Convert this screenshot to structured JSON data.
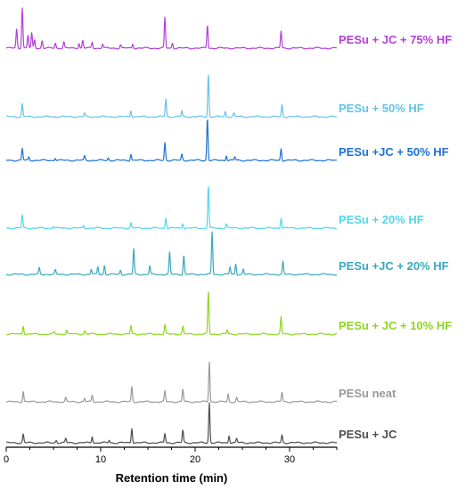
{
  "chart_data": {
    "type": "line",
    "title": "",
    "xlabel": "Retention time (min)",
    "ylabel": "",
    "xlim": [
      0,
      35
    ],
    "x_ticks": [
      0,
      10,
      20,
      30
    ],
    "grid": false,
    "legend": "inline labels at right of each trace",
    "series": [
      {
        "name": "PESu + JC + 75% HF",
        "color": "#b43fd9",
        "peaks": [
          [
            1.1,
            0.45
          ],
          [
            1.7,
            0.95
          ],
          [
            2.3,
            0.3
          ],
          [
            2.7,
            0.35
          ],
          [
            3.0,
            0.2
          ],
          [
            3.8,
            0.18
          ],
          [
            5.2,
            0.12
          ],
          [
            6.1,
            0.15
          ],
          [
            7.7,
            0.12
          ],
          [
            8.1,
            0.18
          ],
          [
            9.1,
            0.14
          ],
          [
            10.2,
            0.1
          ],
          [
            12.1,
            0.08
          ],
          [
            13.4,
            0.1
          ],
          [
            16.8,
            0.72
          ],
          [
            17.6,
            0.12
          ],
          [
            21.3,
            0.55
          ],
          [
            29.1,
            0.4
          ]
        ]
      },
      {
        "name": "PESu + 50% HF",
        "color": "#63c2ea",
        "peaks": [
          [
            1.7,
            0.3
          ],
          [
            8.3,
            0.08
          ],
          [
            13.2,
            0.15
          ],
          [
            16.9,
            0.42
          ],
          [
            18.6,
            0.14
          ],
          [
            21.4,
            1.0
          ],
          [
            23.2,
            0.12
          ],
          [
            24.1,
            0.08
          ],
          [
            29.2,
            0.28
          ]
        ]
      },
      {
        "name": "PESu +JC + 50% HF",
        "color": "#1d72d4",
        "peaks": [
          [
            1.7,
            0.28
          ],
          [
            2.4,
            0.08
          ],
          [
            5.2,
            0.06
          ],
          [
            8.3,
            0.1
          ],
          [
            10.8,
            0.06
          ],
          [
            13.2,
            0.15
          ],
          [
            16.8,
            0.42
          ],
          [
            18.6,
            0.14
          ],
          [
            21.3,
            1.0
          ],
          [
            23.3,
            0.12
          ],
          [
            24.2,
            0.08
          ],
          [
            29.1,
            0.28
          ]
        ]
      },
      {
        "name": "PESu + 20% HF",
        "color": "#52d6ec",
        "peaks": [
          [
            1.7,
            0.3
          ],
          [
            5.0,
            0.05
          ],
          [
            8.2,
            0.06
          ],
          [
            13.2,
            0.12
          ],
          [
            16.9,
            0.25
          ],
          [
            18.7,
            0.12
          ],
          [
            21.4,
            1.0
          ],
          [
            23.3,
            0.1
          ],
          [
            29.1,
            0.25
          ]
        ]
      },
      {
        "name": "PESu +JC + 20% HF",
        "color": "#38a8be",
        "peaks": [
          [
            3.5,
            0.15
          ],
          [
            5.2,
            0.1
          ],
          [
            9.0,
            0.12
          ],
          [
            9.7,
            0.18
          ],
          [
            10.4,
            0.22
          ],
          [
            12.1,
            0.1
          ],
          [
            13.5,
            0.6
          ],
          [
            15.2,
            0.2
          ],
          [
            17.3,
            0.52
          ],
          [
            18.8,
            0.45
          ],
          [
            21.8,
            1.0
          ],
          [
            23.7,
            0.18
          ],
          [
            24.3,
            0.25
          ],
          [
            25.1,
            0.12
          ],
          [
            29.3,
            0.3
          ]
        ]
      },
      {
        "name": "PESu + JC + 10% HF",
        "color": "#8ed61d",
        "peaks": [
          [
            1.8,
            0.2
          ],
          [
            5.1,
            0.05
          ],
          [
            6.4,
            0.1
          ],
          [
            8.3,
            0.08
          ],
          [
            13.2,
            0.2
          ],
          [
            16.8,
            0.22
          ],
          [
            18.7,
            0.18
          ],
          [
            21.4,
            1.0
          ],
          [
            23.4,
            0.1
          ],
          [
            29.1,
            0.4
          ]
        ]
      },
      {
        "name": "PESu neat",
        "color": "#999999",
        "peaks": [
          [
            1.8,
            0.25
          ],
          [
            6.3,
            0.1
          ],
          [
            8.3,
            0.08
          ],
          [
            9.1,
            0.15
          ],
          [
            13.3,
            0.35
          ],
          [
            16.8,
            0.25
          ],
          [
            18.7,
            0.3
          ],
          [
            21.5,
            0.95
          ],
          [
            23.5,
            0.18
          ],
          [
            24.4,
            0.1
          ],
          [
            29.2,
            0.22
          ]
        ]
      },
      {
        "name": "PESu + JC",
        "color": "#4d4d4d",
        "peaks": [
          [
            1.8,
            0.2
          ],
          [
            5.3,
            0.06
          ],
          [
            6.3,
            0.1
          ],
          [
            9.1,
            0.15
          ],
          [
            10.9,
            0.06
          ],
          [
            13.3,
            0.35
          ],
          [
            16.8,
            0.22
          ],
          [
            18.7,
            0.3
          ],
          [
            21.5,
            0.95
          ],
          [
            23.6,
            0.18
          ],
          [
            24.4,
            0.1
          ],
          [
            29.2,
            0.18
          ]
        ]
      }
    ]
  }
}
